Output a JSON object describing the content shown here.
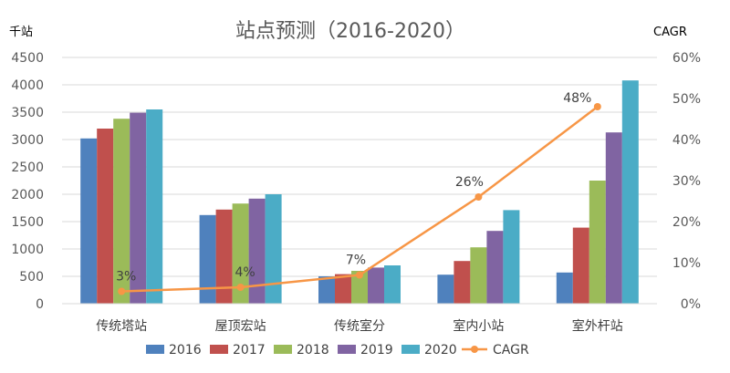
{
  "chart_data": {
    "type": "bar",
    "title": "站点预测（2016-2020）",
    "y_left_unit": "千站",
    "y_right_unit": "CAGR",
    "categories": [
      "传统塔站",
      "屋顶宏站",
      "传统室分",
      "室内小站",
      "室外杆站"
    ],
    "ylim": [
      0,
      4500
    ],
    "y_ticks": [
      "0",
      "500",
      "1000",
      "1500",
      "2000",
      "2500",
      "3000",
      "3500",
      "4000",
      "4500"
    ],
    "y2lim": [
      0,
      60
    ],
    "y2_ticks": [
      "0%",
      "10%",
      "20%",
      "30%",
      "40%",
      "50%",
      "60%"
    ],
    "grid": true,
    "legend_position": "bottom",
    "series": [
      {
        "name": "2016",
        "color": "#4f81bd",
        "values": [
          3020,
          1620,
          500,
          530,
          570
        ]
      },
      {
        "name": "2017",
        "color": "#c0504d",
        "values": [
          3200,
          1720,
          540,
          780,
          1390
        ]
      },
      {
        "name": "2018",
        "color": "#9bbb59",
        "values": [
          3380,
          1830,
          600,
          1030,
          2250
        ]
      },
      {
        "name": "2019",
        "color": "#8064a2",
        "values": [
          3490,
          1920,
          660,
          1330,
          3130
        ]
      },
      {
        "name": "2020",
        "color": "#4bacc6",
        "values": [
          3550,
          2000,
          700,
          1710,
          4080
        ]
      }
    ],
    "line_series": {
      "name": "CAGR",
      "color": "#f79646",
      "axis": "right",
      "values": [
        3,
        4,
        7,
        26,
        48
      ],
      "labels": [
        "3%",
        "4%",
        "7%",
        "26%",
        "48%"
      ]
    }
  }
}
